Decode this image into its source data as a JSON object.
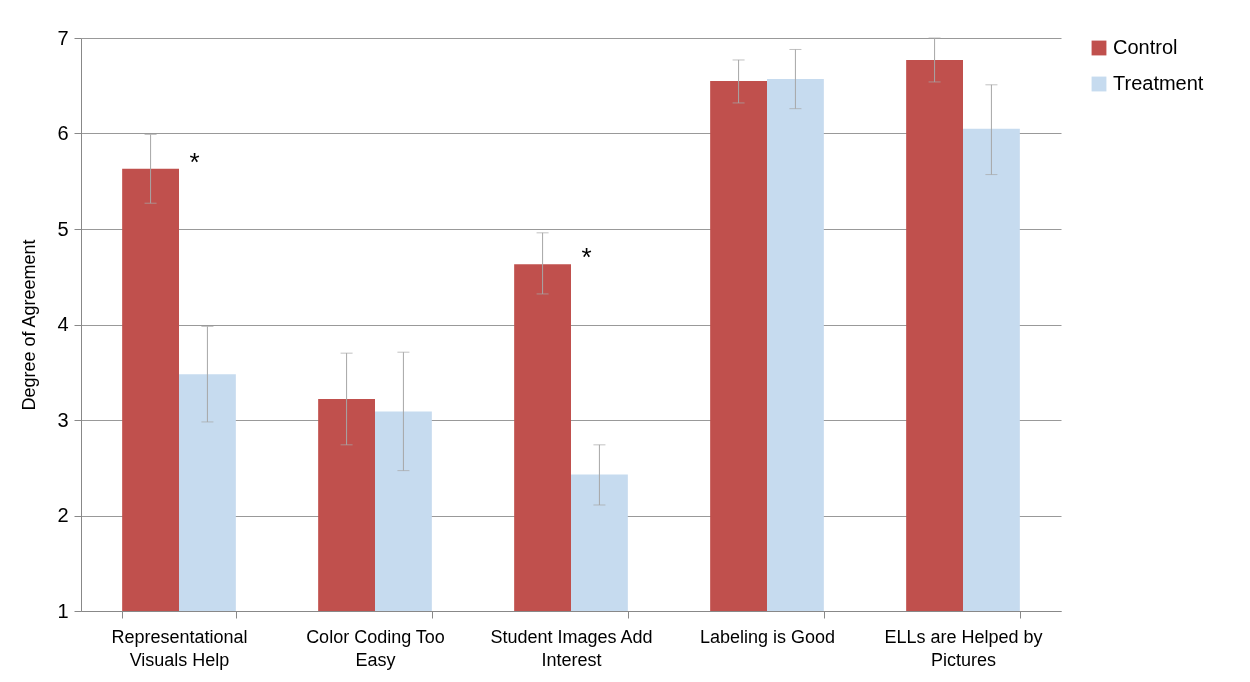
{
  "chart_data": {
    "type": "bar",
    "ylabel": "Degree of Agreement",
    "categories": [
      "Representational Visuals Help",
      "Color Coding Too Easy",
      "Student Images Add Interest",
      "Labeling is Good",
      "ELLs are Helped by Pictures"
    ],
    "series": [
      {
        "name": "Control",
        "color": "#c0504d",
        "values": [
          5.63,
          3.22,
          4.63,
          6.55,
          6.77
        ],
        "errors": [
          [
            5.27,
            5.99
          ],
          [
            2.74,
            3.7
          ],
          [
            4.32,
            4.96
          ],
          [
            6.32,
            6.77
          ],
          [
            6.54,
            7.0
          ]
        ]
      },
      {
        "name": "Treatment",
        "color": "#c6dbef",
        "values": [
          3.48,
          3.09,
          2.43,
          6.57,
          6.05
        ],
        "errors": [
          [
            2.98,
            3.98
          ],
          [
            2.47,
            3.71
          ],
          [
            2.11,
            2.74
          ],
          [
            6.26,
            6.88
          ],
          [
            5.57,
            6.51
          ]
        ]
      }
    ],
    "annotations": [
      {
        "text": "*",
        "x": "Representational Visuals Help",
        "y": 5.63
      },
      {
        "text": "*",
        "x": "Student Images Add Interest",
        "y": 4.63
      }
    ],
    "ylim": [
      1,
      7
    ],
    "yticks": [
      1,
      2,
      3,
      4,
      5,
      6,
      7
    ],
    "grid": "y",
    "legend": "top right"
  }
}
